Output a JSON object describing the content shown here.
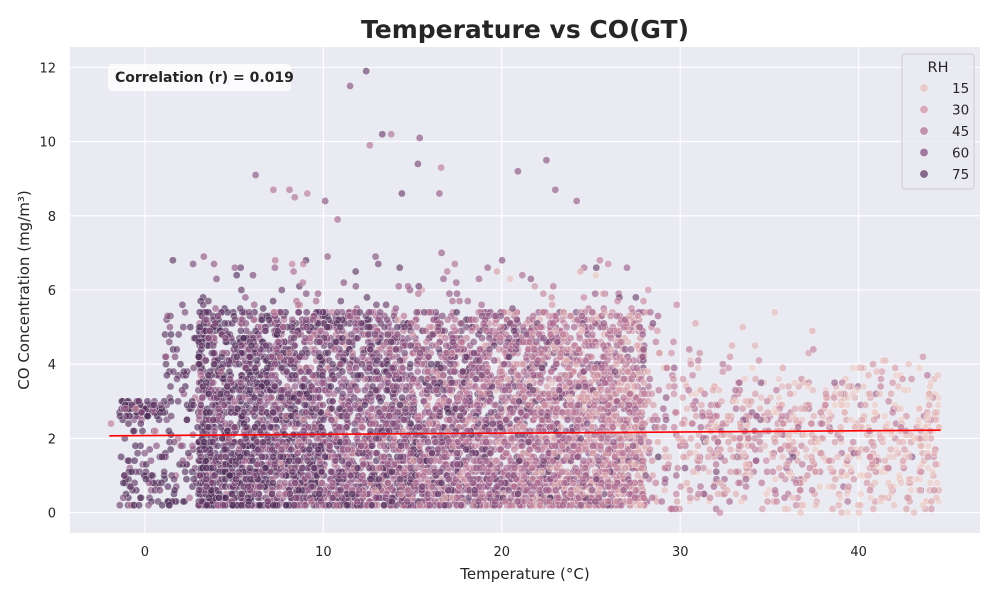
{
  "chart_data": {
    "type": "scatter",
    "title": "Temperature vs CO(GT)",
    "xlabel": "Temperature (°C)",
    "ylabel": "CO Concentration (mg/m³)",
    "xlim": [
      -4.2,
      46.8
    ],
    "ylim": [
      -0.55,
      12.55
    ],
    "x_ticks": [
      0,
      10,
      20,
      30,
      40
    ],
    "y_ticks": [
      0,
      2,
      4,
      6,
      8,
      10,
      12
    ],
    "grid": true,
    "background": "#eaeaf2",
    "hue": {
      "name": "RH",
      "legend_values": [
        15,
        30,
        45,
        60,
        75
      ],
      "colormap": "rocket_r (light pink → dark purple)",
      "color_stops": [
        "#efd0c9",
        "#dba6ab",
        "#c17d98",
        "#9a5b88",
        "#6b3d6c",
        "#4b2a55"
      ]
    },
    "legend_placement": "top-right",
    "annotation": "Correlation (r) = 0.019",
    "regression_line": {
      "color": "#ff0000",
      "points": [
        [
          -2.0,
          2.07
        ],
        [
          44.6,
          2.22
        ]
      ]
    },
    "n_points_approx": 7000,
    "notable_points": [
      {
        "x": 12.4,
        "y": 11.9,
        "rh": 72
      },
      {
        "x": 11.5,
        "y": 11.5,
        "rh": 60
      },
      {
        "x": 13.3,
        "y": 10.2,
        "rh": 70
      },
      {
        "x": 13.8,
        "y": 10.2,
        "rh": 45
      },
      {
        "x": 15.4,
        "y": 10.1,
        "rh": 60
      },
      {
        "x": 12.6,
        "y": 9.9,
        "rh": 45
      },
      {
        "x": 22.5,
        "y": 9.5,
        "rh": 60
      },
      {
        "x": 15.3,
        "y": 9.4,
        "rh": 65
      },
      {
        "x": 16.6,
        "y": 9.3,
        "rh": 40
      },
      {
        "x": 20.9,
        "y": 9.2,
        "rh": 60
      },
      {
        "x": 6.2,
        "y": 9.1,
        "rh": 60
      },
      {
        "x": 7.2,
        "y": 8.7,
        "rh": 45
      },
      {
        "x": 8.1,
        "y": 8.7,
        "rh": 45
      },
      {
        "x": 23.0,
        "y": 8.7,
        "rh": 55
      },
      {
        "x": 9.1,
        "y": 8.6,
        "rh": 40
      },
      {
        "x": 14.4,
        "y": 8.6,
        "rh": 70
      },
      {
        "x": 16.5,
        "y": 8.6,
        "rh": 55
      },
      {
        "x": 10.1,
        "y": 8.4,
        "rh": 60
      },
      {
        "x": 24.2,
        "y": 8.4,
        "rh": 55
      },
      {
        "x": 8.4,
        "y": 8.5,
        "rh": 45
      },
      {
        "x": 10.8,
        "y": 7.9,
        "rh": 50
      },
      {
        "x": 2.7,
        "y": 6.7,
        "rh": 65
      },
      {
        "x": 2.1,
        "y": 5.6,
        "rh": 70
      },
      {
        "x": -1.9,
        "y": 2.4,
        "rh": 40
      },
      {
        "x": -0.5,
        "y": 2.8,
        "rh": 35
      },
      {
        "x": 0.6,
        "y": 2.2,
        "rh": 30
      },
      {
        "x": 29.8,
        "y": 5.6,
        "rh": 35
      },
      {
        "x": 33.5,
        "y": 5.0,
        "rh": 20
      },
      {
        "x": 35.3,
        "y": 5.4,
        "rh": 15
      },
      {
        "x": 37.4,
        "y": 4.9,
        "rh": 20
      },
      {
        "x": 41.5,
        "y": 4.1,
        "rh": 15
      },
      {
        "x": 42.8,
        "y": 4.0,
        "rh": 15
      },
      {
        "x": 43.4,
        "y": 2.8,
        "rh": 15
      },
      {
        "x": 44.5,
        "y": 2.3,
        "rh": 15
      },
      {
        "x": 42.8,
        "y": 1.5,
        "rh": 15
      },
      {
        "x": 41.8,
        "y": 0.7,
        "rh": 15
      },
      {
        "x": 40.1,
        "y": 0.2,
        "rh": 15
      }
    ]
  }
}
